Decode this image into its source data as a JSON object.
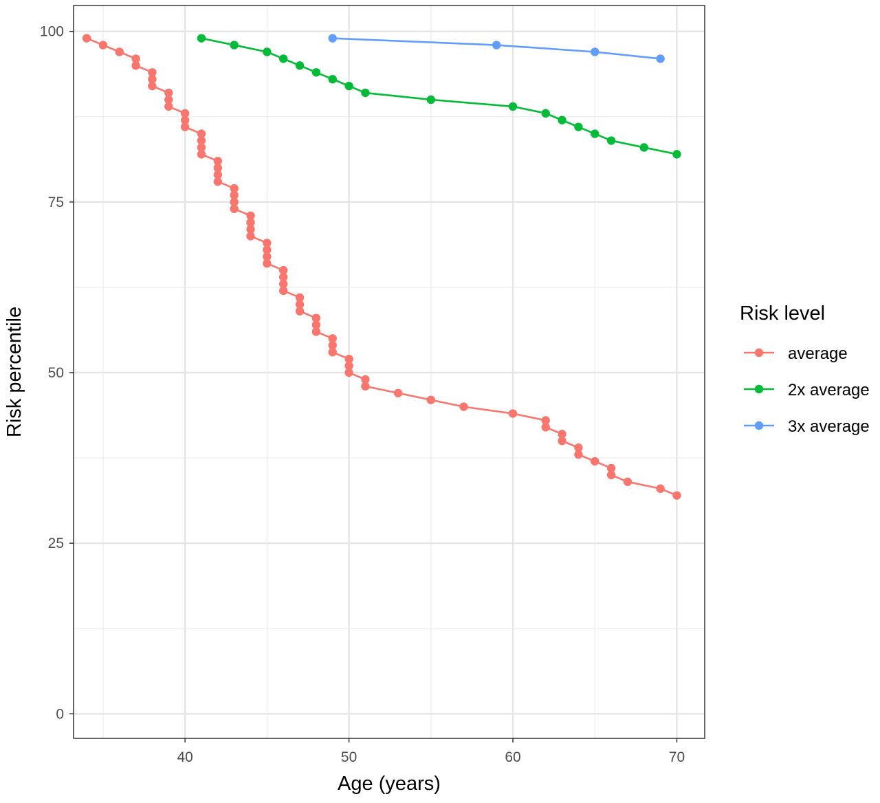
{
  "chart_data": {
    "type": "line",
    "xlabel": "Age (years)",
    "ylabel": "Risk percentile",
    "xlim": [
      33.2,
      71.7
    ],
    "ylim": [
      -3.6,
      103.8
    ],
    "x_ticks": [
      40,
      50,
      60,
      70
    ],
    "y_ticks": [
      0,
      25,
      50,
      75,
      100
    ],
    "grid": true,
    "legend": {
      "title": "Risk level",
      "position": "right"
    },
    "series": [
      {
        "name": "average",
        "color": "#F8766D",
        "points": [
          [
            34,
            99
          ],
          [
            35,
            98
          ],
          [
            36,
            97
          ],
          [
            37,
            96
          ],
          [
            37,
            95
          ],
          [
            38,
            94
          ],
          [
            38,
            93
          ],
          [
            38,
            92
          ],
          [
            39,
            91
          ],
          [
            39,
            90
          ],
          [
            39,
            89
          ],
          [
            40,
            88
          ],
          [
            40,
            87
          ],
          [
            40,
            86
          ],
          [
            41,
            85
          ],
          [
            41,
            84
          ],
          [
            41,
            83
          ],
          [
            41,
            82
          ],
          [
            42,
            81
          ],
          [
            42,
            80
          ],
          [
            42,
            79
          ],
          [
            42,
            78
          ],
          [
            43,
            77
          ],
          [
            43,
            76
          ],
          [
            43,
            75
          ],
          [
            43,
            74
          ],
          [
            44,
            73
          ],
          [
            44,
            72
          ],
          [
            44,
            71
          ],
          [
            44,
            70
          ],
          [
            45,
            69
          ],
          [
            45,
            68
          ],
          [
            45,
            67
          ],
          [
            45,
            66
          ],
          [
            46,
            65
          ],
          [
            46,
            64
          ],
          [
            46,
            63
          ],
          [
            46,
            62
          ],
          [
            47,
            61
          ],
          [
            47,
            60
          ],
          [
            47,
            59
          ],
          [
            48,
            58
          ],
          [
            48,
            57
          ],
          [
            48,
            56
          ],
          [
            49,
            55
          ],
          [
            49,
            54
          ],
          [
            49,
            53
          ],
          [
            50,
            52
          ],
          [
            50,
            51
          ],
          [
            50,
            50
          ],
          [
            51,
            49
          ],
          [
            51,
            48
          ],
          [
            53,
            47
          ],
          [
            55,
            46
          ],
          [
            57,
            45
          ],
          [
            60,
            44
          ],
          [
            62,
            43
          ],
          [
            62,
            42
          ],
          [
            63,
            41
          ],
          [
            63,
            40
          ],
          [
            64,
            39
          ],
          [
            64,
            38
          ],
          [
            65,
            37
          ],
          [
            66,
            36
          ],
          [
            66,
            35
          ],
          [
            67,
            34
          ],
          [
            69,
            33
          ],
          [
            70,
            32
          ]
        ]
      },
      {
        "name": "2x average",
        "color": "#00BA38",
        "points": [
          [
            41,
            99
          ],
          [
            43,
            98
          ],
          [
            45,
            97
          ],
          [
            46,
            96
          ],
          [
            47,
            95
          ],
          [
            48,
            94
          ],
          [
            49,
            93
          ],
          [
            50,
            92
          ],
          [
            51,
            91
          ],
          [
            55,
            90
          ],
          [
            60,
            89
          ],
          [
            62,
            88
          ],
          [
            63,
            87
          ],
          [
            64,
            86
          ],
          [
            65,
            85
          ],
          [
            66,
            84
          ],
          [
            68,
            83
          ],
          [
            70,
            82
          ]
        ]
      },
      {
        "name": "3x average",
        "color": "#619CFF",
        "points": [
          [
            49,
            99
          ],
          [
            59,
            98
          ],
          [
            65,
            97
          ],
          [
            69,
            96
          ]
        ]
      }
    ]
  }
}
